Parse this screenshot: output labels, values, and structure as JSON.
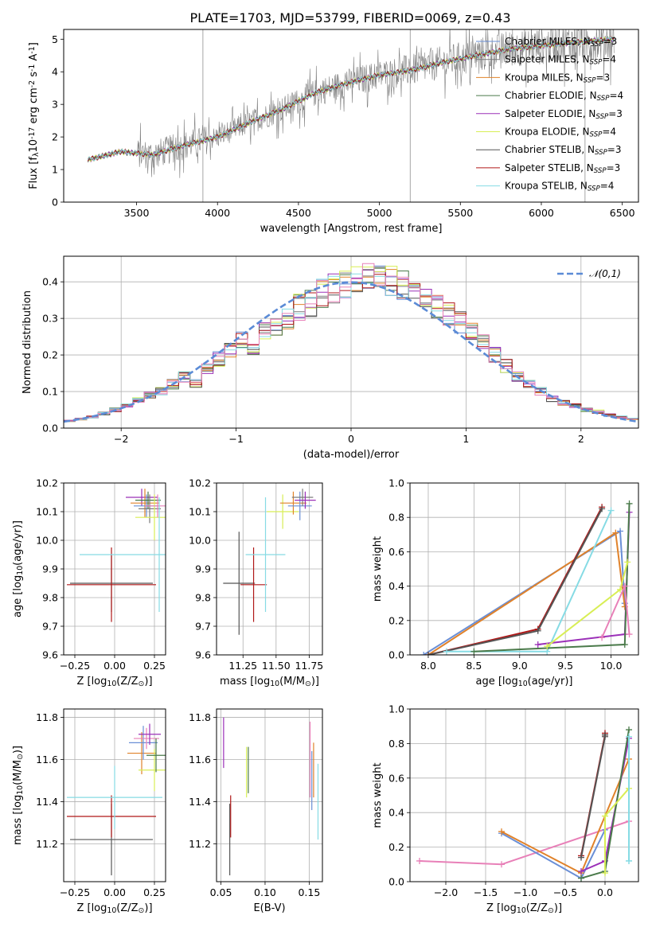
{
  "colors": {
    "chabrier_miles": "#6a8fd6",
    "salpeter_miles": "#7a7a7a",
    "kroupa_miles": "#e0822a",
    "chabrier_elodie": "#4a7a4a",
    "salpeter_elodie": "#9b30b8",
    "kroupa_elodie": "#d8ee55",
    "chabrier_stelib": "#555555",
    "salpeter_stelib": "#b01818",
    "kroupa_stelib": "#86dbe4",
    "data": "#808080",
    "normal": "#5b8bd6",
    "pink": "#e880b8"
  },
  "chart_data": [
    {
      "type": "line",
      "title": "PLATE=1703, MJD=53799, FIBERID=0069, z=0.43",
      "xlabel": "wavelength [Angstrom, rest frame]",
      "ylabel": "Flux [f$_\\lambda$10$^{-17}$ erg cm$^{-2}$ s$^{-1}$ A$^{-1}$]",
      "xlim": [
        3050,
        6600
      ],
      "ylim": [
        0,
        5.3
      ],
      "xticks": [
        "3500",
        "4000",
        "4500",
        "5000",
        "5500",
        "6000",
        "6500"
      ],
      "yticks": [
        "0",
        "1",
        "2",
        "3",
        "4",
        "5"
      ],
      "x": [
        3200,
        3400,
        3600,
        3800,
        4000,
        4200,
        4400,
        4600,
        4800,
        5000,
        5200,
        5400,
        5600,
        5800,
        6000,
        6200,
        6450
      ],
      "series": [
        {
          "name": "Chabrier MILES, N$_{SSP}$=3",
          "values": [
            1.3,
            1.55,
            1.45,
            1.75,
            2.0,
            2.45,
            2.85,
            3.35,
            3.65,
            3.9,
            4.05,
            4.3,
            4.5,
            4.7,
            4.8,
            4.9,
            5.0
          ]
        },
        {
          "name": "Salpeter MILES, N$_{SSP}$=4",
          "values": [
            1.3,
            1.55,
            1.45,
            1.75,
            2.0,
            2.45,
            2.85,
            3.35,
            3.65,
            3.9,
            4.05,
            4.3,
            4.5,
            4.7,
            4.8,
            4.9,
            5.0
          ]
        },
        {
          "name": "Kroupa MILES, N$_{SSP}$=3",
          "values": [
            1.3,
            1.55,
            1.45,
            1.75,
            2.0,
            2.45,
            2.85,
            3.35,
            3.65,
            3.9,
            4.05,
            4.3,
            4.5,
            4.7,
            4.8,
            4.9,
            5.0
          ]
        },
        {
          "name": "Chabrier ELODIE, N$_{SSP}$=4",
          "values": [
            1.3,
            1.55,
            1.45,
            1.75,
            2.0,
            2.45,
            2.85,
            3.35,
            3.65,
            3.9,
            4.05,
            4.3,
            4.5,
            4.7,
            4.8,
            4.9,
            5.0
          ]
        },
        {
          "name": "Salpeter ELODIE, N$_{SSP}$=3",
          "values": [
            1.3,
            1.55,
            1.45,
            1.75,
            2.0,
            2.45,
            2.85,
            3.35,
            3.65,
            3.9,
            4.05,
            4.3,
            4.5,
            4.7,
            4.8,
            4.9,
            5.0
          ]
        },
        {
          "name": "Kroupa ELODIE, N$_{SSP}$=4",
          "values": [
            1.3,
            1.55,
            1.45,
            1.75,
            2.0,
            2.45,
            2.85,
            3.35,
            3.65,
            3.9,
            4.05,
            4.3,
            4.5,
            4.7,
            4.8,
            4.9,
            5.0
          ]
        },
        {
          "name": "Chabrier STELIB, N$_{SSP}$=3",
          "values": [
            1.3,
            1.55,
            1.45,
            1.75,
            2.0,
            2.45,
            2.85,
            3.35,
            3.65,
            3.9,
            4.05,
            4.3,
            4.5,
            4.7,
            4.8,
            4.9,
            5.0
          ]
        },
        {
          "name": "Salpeter STELIB, N$_{SSP}$=3",
          "values": [
            1.3,
            1.55,
            1.45,
            1.75,
            2.0,
            2.45,
            2.85,
            3.35,
            3.65,
            3.9,
            4.05,
            4.3,
            4.5,
            4.7,
            4.8,
            4.9,
            5.0
          ]
        },
        {
          "name": "Kroupa STELIB, N$_{SSP}$=4",
          "values": [
            1.3,
            1.55,
            1.45,
            1.75,
            2.0,
            2.45,
            2.85,
            3.35,
            3.65,
            3.9,
            4.05,
            4.3,
            4.5,
            4.7,
            4.8,
            4.9,
            5.0
          ]
        }
      ],
      "legend": "right"
    },
    {
      "type": "line",
      "xlabel": "(data-model)/error",
      "ylabel": "Normed distribution",
      "xlim": [
        -2.5,
        2.5
      ],
      "ylim": [
        0,
        0.47
      ],
      "xticks": [
        "−2",
        "−1",
        "0",
        "1",
        "2"
      ],
      "yticks": [
        "0.0",
        "0.1",
        "0.2",
        "0.3",
        "0.4"
      ],
      "series": [
        {
          "name": "$\\mathcal{N}(0,1)$",
          "style": "dashed",
          "x": [
            -2.5,
            -2.0,
            -1.5,
            -1.0,
            -0.5,
            0,
            0.5,
            1.0,
            1.5,
            2.0,
            2.5
          ],
          "values": [
            0.018,
            0.054,
            0.13,
            0.242,
            0.352,
            0.399,
            0.352,
            0.242,
            0.13,
            0.054,
            0.018
          ]
        }
      ],
      "histogram_x": [
        -2.5,
        -2.4,
        -2.3,
        -2.2,
        -2.1,
        -2.0,
        -1.9,
        -1.8,
        -1.7,
        -1.6,
        -1.5,
        -1.4,
        -1.3,
        -1.2,
        -1.1,
        -1.0,
        -0.9,
        -0.8,
        -0.7,
        -0.6,
        -0.5,
        -0.4,
        -0.3,
        -0.2,
        -0.1,
        0.0,
        0.1,
        0.2,
        0.3,
        0.4,
        0.5,
        0.6,
        0.7,
        0.8,
        0.9,
        1.0,
        1.1,
        1.2,
        1.3,
        1.4,
        1.5,
        1.6,
        1.7,
        1.8,
        1.9,
        2.0,
        2.1,
        2.2,
        2.3,
        2.4
      ],
      "histogram_values": [
        0.02,
        0.025,
        0.03,
        0.04,
        0.05,
        0.06,
        0.075,
        0.09,
        0.1,
        0.12,
        0.14,
        0.12,
        0.16,
        0.19,
        0.21,
        0.24,
        0.22,
        0.26,
        0.28,
        0.3,
        0.33,
        0.34,
        0.37,
        0.38,
        0.39,
        0.41,
        0.42,
        0.41,
        0.4,
        0.39,
        0.37,
        0.35,
        0.33,
        0.31,
        0.29,
        0.26,
        0.23,
        0.2,
        0.17,
        0.14,
        0.12,
        0.1,
        0.08,
        0.07,
        0.06,
        0.05,
        0.045,
        0.035,
        0.03,
        0.025
      ],
      "legend": "top-right"
    },
    {
      "type": "scatter",
      "xlabel": "Z [log$_{10}$(Z/Z$_\\odot$)]",
      "ylabel": "age  [log$_{10}$(age/yr)]",
      "xlim": [
        -0.32,
        0.32
      ],
      "ylim": [
        9.6,
        10.2
      ],
      "xticks": [
        "−0.25",
        "0.00",
        "0.25"
      ],
      "yticks": [
        "9.6",
        "9.7",
        "9.8",
        "9.9",
        "10.0",
        "10.1",
        "10.2"
      ],
      "points": [
        {
          "x": -0.02,
          "y": 9.85,
          "xerr": 0.26,
          "yerr": 0.1,
          "series": "Chabrier STELIB"
        },
        {
          "x": -0.02,
          "y": 9.845,
          "xerr": 0.28,
          "yerr": 0.13,
          "series": "Salpeter STELIB"
        },
        {
          "x": 0.17,
          "y": 10.15,
          "xerr": 0.1,
          "yerr": 0.03,
          "series": "Salpeter ELODIE"
        },
        {
          "x": 0.19,
          "y": 10.13,
          "xerr": 0.09,
          "yerr": 0.05,
          "series": "Kroupa MILES"
        },
        {
          "x": 0.2,
          "y": 10.12,
          "xerr": 0.08,
          "yerr": 0.04,
          "series": "Chabrier MILES"
        },
        {
          "x": 0.21,
          "y": 10.14,
          "xerr": 0.08,
          "yerr": 0.03,
          "series": "Chabrier ELODIE"
        },
        {
          "x": 0.22,
          "y": 10.11,
          "xerr": 0.07,
          "yerr": 0.05,
          "series": "Salpeter MILES"
        },
        {
          "x": 0.25,
          "y": 10.08,
          "xerr": 0.12,
          "yerr": 0.08,
          "series": "Kroupa ELODIE"
        },
        {
          "x": 0.27,
          "y": 10.12,
          "xerr": 0.08,
          "yerr": 0.04,
          "series": "pink"
        },
        {
          "x": 0.28,
          "y": 9.95,
          "xerr": 0.5,
          "yerr": 0.2,
          "series": "Kroupa STELIB"
        }
      ]
    },
    {
      "type": "scatter",
      "xlabel": "mass [log$_{10}$(M/M$_\\odot$)]",
      "ylabel": "",
      "xlim": [
        11.05,
        11.85
      ],
      "ylim": [
        9.6,
        10.2
      ],
      "xticks": [
        "11.25",
        "11.50",
        "11.75"
      ],
      "yticks": [
        "9.6",
        "9.7",
        "9.8",
        "9.9",
        "10.0",
        "10.1",
        "10.2"
      ],
      "points": [
        {
          "x": 11.22,
          "y": 9.85,
          "xerr": 0.12,
          "yerr": 0.18,
          "series": "Chabrier STELIB"
        },
        {
          "x": 11.33,
          "y": 9.845,
          "xerr": 0.1,
          "yerr": 0.13,
          "series": "Salpeter STELIB"
        },
        {
          "x": 11.42,
          "y": 9.95,
          "xerr": 0.15,
          "yerr": 0.2,
          "series": "Kroupa STELIB"
        },
        {
          "x": 11.55,
          "y": 10.1,
          "xerr": 0.12,
          "yerr": 0.06,
          "series": "Kroupa ELODIE"
        },
        {
          "x": 11.63,
          "y": 10.13,
          "xerr": 0.1,
          "yerr": 0.04,
          "series": "Kroupa MILES"
        },
        {
          "x": 11.68,
          "y": 10.12,
          "xerr": 0.09,
          "yerr": 0.05,
          "series": "Chabrier MILES"
        },
        {
          "x": 11.7,
          "y": 10.15,
          "xerr": 0.08,
          "yerr": 0.03,
          "series": "Salpeter MILES"
        },
        {
          "x": 11.72,
          "y": 10.14,
          "xerr": 0.08,
          "yerr": 0.03,
          "series": "Salpeter ELODIE"
        }
      ]
    },
    {
      "type": "line",
      "xlabel": "age  [log$_{10}$(age/yr)]",
      "ylabel": "mass weight",
      "xlim": [
        7.8,
        10.3
      ],
      "ylim": [
        0,
        1.0
      ],
      "xticks": [
        "8.0",
        "8.5",
        "9.0",
        "9.5",
        "10.0"
      ],
      "yticks": [
        "0.0",
        "0.2",
        "0.4",
        "0.6",
        "0.8",
        "1.0"
      ],
      "series": [
        {
          "name": "Chabrier MILES",
          "x": [
            7.95,
            10.1,
            10.15
          ],
          "values": [
            0.0,
            0.72,
            0.3
          ]
        },
        {
          "name": "Kroupa MILES",
          "x": [
            8.0,
            10.05,
            10.15
          ],
          "values": [
            0.0,
            0.71,
            0.28
          ]
        },
        {
          "name": "Salpeter STELIB",
          "x": [
            8.0,
            9.2,
            9.9
          ],
          "values": [
            0.0,
            0.15,
            0.86
          ]
        },
        {
          "name": "Chabrier STELIB",
          "x": [
            8.0,
            9.2,
            9.9
          ],
          "values": [
            0.0,
            0.14,
            0.85
          ]
        },
        {
          "name": "Kroupa STELIB",
          "x": [
            8.2,
            9.3,
            10.0
          ],
          "values": [
            0.02,
            0.02,
            0.84
          ]
        },
        {
          "name": "Salpeter ELODIE",
          "x": [
            9.2,
            10.15,
            10.2
          ],
          "values": [
            0.06,
            0.12,
            0.83
          ]
        },
        {
          "name": "Chabrier ELODIE",
          "x": [
            8.5,
            10.15,
            10.2
          ],
          "values": [
            0.02,
            0.06,
            0.88
          ]
        },
        {
          "name": "Kroupa ELODIE",
          "x": [
            9.3,
            10.1,
            10.18
          ],
          "values": [
            0.05,
            0.38,
            0.54
          ]
        },
        {
          "name": "pink",
          "x": [
            9.9,
            10.15,
            10.2
          ],
          "values": [
            0.1,
            0.4,
            0.12
          ]
        }
      ]
    },
    {
      "type": "scatter",
      "xlabel": "Z [log$_{10}$(Z/Z$_\\odot$)]",
      "ylabel": "mass [log$_{10}$(M/M$_\\odot$)]",
      "xlim": [
        -0.32,
        0.32
      ],
      "ylim": [
        11.02,
        11.84
      ],
      "xticks": [
        "−0.25",
        "0.00",
        "0.25"
      ],
      "yticks": [
        "11.2",
        "11.4",
        "11.6",
        "11.8"
      ],
      "points": [
        {
          "x": -0.02,
          "y": 11.22,
          "xerr": 0.26,
          "yerr": 0.17,
          "series": "Chabrier STELIB"
        },
        {
          "x": -0.02,
          "y": 11.33,
          "xerr": 0.28,
          "yerr": 0.1,
          "series": "Salpeter STELIB"
        },
        {
          "x": 0.0,
          "y": 11.42,
          "xerr": 0.3,
          "yerr": 0.15,
          "series": "Kroupa STELIB"
        },
        {
          "x": 0.17,
          "y": 11.63,
          "xerr": 0.09,
          "yerr": 0.1,
          "series": "Kroupa MILES"
        },
        {
          "x": 0.18,
          "y": 11.68,
          "xerr": 0.09,
          "yerr": 0.08,
          "series": "Chabrier MILES"
        },
        {
          "x": 0.2,
          "y": 11.7,
          "xerr": 0.08,
          "yerr": 0.05,
          "series": "pink"
        },
        {
          "x": 0.22,
          "y": 11.72,
          "xerr": 0.07,
          "yerr": 0.05,
          "series": "Salpeter ELODIE"
        },
        {
          "x": 0.25,
          "y": 11.55,
          "xerr": 0.1,
          "yerr": 0.1,
          "series": "Kroupa ELODIE"
        },
        {
          "x": 0.26,
          "y": 11.62,
          "xerr": 0.06,
          "yerr": 0.08,
          "series": "Chabrier ELODIE"
        }
      ]
    },
    {
      "type": "scatter",
      "xlabel": "E(B-V)",
      "ylabel": "",
      "xlim": [
        0.045,
        0.165
      ],
      "ylim": [
        11.02,
        11.84
      ],
      "xticks": [
        "0.05",
        "0.10",
        "0.15"
      ],
      "yticks": [
        "11.2",
        "11.4",
        "11.6",
        "11.8"
      ],
      "points": [
        {
          "x": 0.053,
          "y": 11.68,
          "yerr": 0.12,
          "series": "Salpeter ELODIE"
        },
        {
          "x": 0.06,
          "y": 11.22,
          "yerr": 0.17,
          "series": "Chabrier STELIB"
        },
        {
          "x": 0.061,
          "y": 11.33,
          "yerr": 0.1,
          "series": "Salpeter STELIB"
        },
        {
          "x": 0.079,
          "y": 11.54,
          "yerr": 0.12,
          "series": "Kroupa ELODIE"
        },
        {
          "x": 0.081,
          "y": 11.55,
          "yerr": 0.11,
          "series": "Chabrier ELODIE"
        },
        {
          "x": 0.151,
          "y": 11.6,
          "yerr": 0.18,
          "series": "pink"
        },
        {
          "x": 0.153,
          "y": 11.5,
          "yerr": 0.14,
          "series": "Chabrier MILES"
        },
        {
          "x": 0.155,
          "y": 11.55,
          "yerr": 0.13,
          "series": "Kroupa MILES"
        },
        {
          "x": 0.16,
          "y": 11.4,
          "yerr": 0.18,
          "series": "Kroupa STELIB"
        }
      ]
    },
    {
      "type": "line",
      "xlabel": "Z [log$_{10}$(Z/Z$_\\odot$)]",
      "ylabel": "mass weight",
      "xlim": [
        -2.45,
        0.42
      ],
      "ylim": [
        0,
        1.0
      ],
      "xticks": [
        "−2.0",
        "−1.5",
        "−1.0",
        "−0.5",
        "0.0"
      ],
      "yticks": [
        "0.0",
        "0.2",
        "0.4",
        "0.6",
        "0.8",
        "1.0"
      ],
      "series": [
        {
          "name": "pink",
          "x": [
            -2.33,
            -1.3,
            0.3
          ],
          "values": [
            0.12,
            0.1,
            0.35
          ]
        },
        {
          "name": "Chabrier MILES",
          "x": [
            -1.3,
            -0.3,
            0.0
          ],
          "values": [
            0.28,
            0.02,
            0.3
          ]
        },
        {
          "name": "Kroupa MILES",
          "x": [
            -1.3,
            -0.3,
            0.3
          ],
          "values": [
            0.29,
            0.05,
            0.71
          ]
        },
        {
          "name": "Salpeter STELIB",
          "x": [
            -0.3,
            0.0,
            0.0
          ],
          "values": [
            0.15,
            0.85,
            0.86
          ]
        },
        {
          "name": "Chabrier STELIB",
          "x": [
            -0.3,
            0.0,
            0.0
          ],
          "values": [
            0.14,
            0.84,
            0.85
          ]
        },
        {
          "name": "Salpeter ELODIE",
          "x": [
            -0.3,
            0.0,
            0.3
          ],
          "values": [
            0.06,
            0.12,
            0.83
          ]
        },
        {
          "name": "Chabrier ELODIE",
          "x": [
            -0.3,
            0.0,
            0.3
          ],
          "values": [
            0.02,
            0.06,
            0.88
          ]
        },
        {
          "name": "Kroupa ELODIE",
          "x": [
            0.0,
            0.0,
            0.3
          ],
          "values": [
            0.05,
            0.38,
            0.54
          ]
        },
        {
          "name": "Kroupa STELIB",
          "x": [
            0.3,
            0.3,
            0.3
          ],
          "values": [
            0.12,
            0.84,
            0.12
          ]
        }
      ]
    }
  ]
}
